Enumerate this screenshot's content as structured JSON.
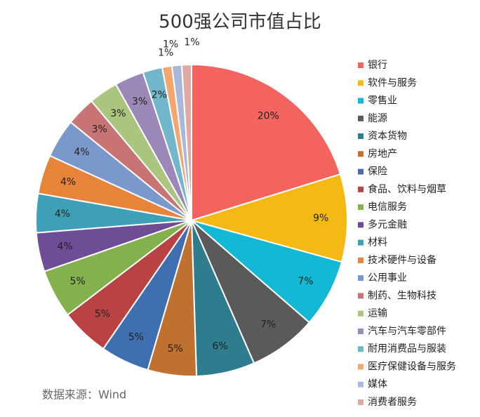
{
  "chart_data": {
    "type": "pie",
    "title": "500强公司市值占比",
    "categories": [
      "银行",
      "软件与服务",
      "零售业",
      "能源",
      "资本货物",
      "房地产",
      "保险",
      "食品、饮料与烟草",
      "电信服务",
      "多元金融",
      "材料",
      "技术硬件与设备",
      "公用事业",
      "制药、生物科技",
      "运输",
      "汽车与汽车零部件",
      "耐用消费品与服装",
      "医疗保健设备与服务",
      "媒体",
      "消费者服务"
    ],
    "values": [
      20,
      9,
      7,
      7,
      6,
      5,
      5,
      5,
      5,
      4,
      4,
      4,
      4,
      3,
      3,
      3,
      2,
      1,
      1,
      1
    ],
    "value_labels": [
      "20%",
      "9%",
      "7%",
      "7%",
      "6%",
      "5%",
      "5%",
      "5%",
      "5%",
      "4%",
      "4%",
      "4%",
      "4%",
      "3%",
      "3%",
      "3%",
      "2%",
      "1%",
      "1%",
      "1%"
    ],
    "colors": [
      "#f4645f",
      "#f5b915",
      "#12b8d4",
      "#5a5a5a",
      "#2e7d8e",
      "#c0702f",
      "#3f6fb0",
      "#b94242",
      "#84b04e",
      "#6f4d96",
      "#3ea0b7",
      "#e8843a",
      "#7b98cc",
      "#c97474",
      "#a9c57e",
      "#9b87b8",
      "#72b6cc",
      "#f4a66f",
      "#a9b8d8",
      "#e0a9a4"
    ],
    "legend": "right",
    "source": "数据来源：Wind"
  }
}
